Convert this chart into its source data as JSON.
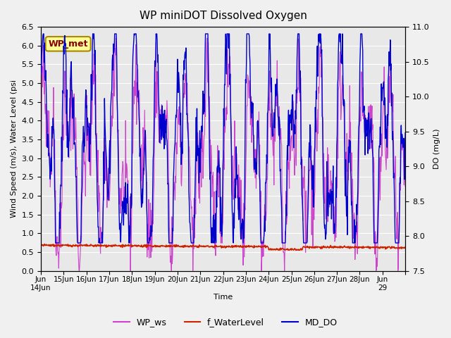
{
  "title": "WP miniDOT Dissolved Oxygen",
  "xlabel": "Time",
  "ylabel_left": "Wind Speed (m/s), Water Level (psi",
  "ylabel_right": "DO (mg/L)",
  "ylim_left": [
    0.0,
    6.5
  ],
  "ylim_right": [
    7.5,
    11.0
  ],
  "yticks_left": [
    0.0,
    0.5,
    1.0,
    1.5,
    2.0,
    2.5,
    3.0,
    3.5,
    4.0,
    4.5,
    5.0,
    5.5,
    6.0,
    6.5
  ],
  "yticks_right": [
    7.5,
    8.0,
    8.5,
    9.0,
    9.5,
    10.0,
    10.5,
    11.0
  ],
  "xtick_positions": [
    0,
    1,
    2,
    3,
    4,
    5,
    6,
    7,
    8,
    9,
    10,
    11,
    12,
    13,
    14,
    15,
    16
  ],
  "xtick_labels": [
    "Jun\n14Jun",
    "15Jun",
    "16Jun",
    "17Jun",
    "18Jun",
    "19Jun",
    "20Jun",
    "21Jun",
    "22Jun",
    "23Jun",
    "24Jun",
    "25Jun",
    "26Jun",
    "27Jun",
    "28Jun",
    "Jun\n29",
    ""
  ],
  "wp_ws_color": "#CC44CC",
  "f_waterlevel_color": "#CC2200",
  "md_do_color": "#0000CC",
  "background_color": "#f0f0f0",
  "plot_bg_color": "#e8e8e8",
  "annotation_text": "WP_met",
  "annotation_bg": "#FFFF99",
  "annotation_border": "#AA8800",
  "annotation_text_color": "#880000",
  "legend_labels": [
    "WP_ws",
    "f_WaterLevel",
    "MD_DO"
  ],
  "grid_color": "#ffffff",
  "n_points": 900,
  "xlim": [
    0,
    16
  ]
}
